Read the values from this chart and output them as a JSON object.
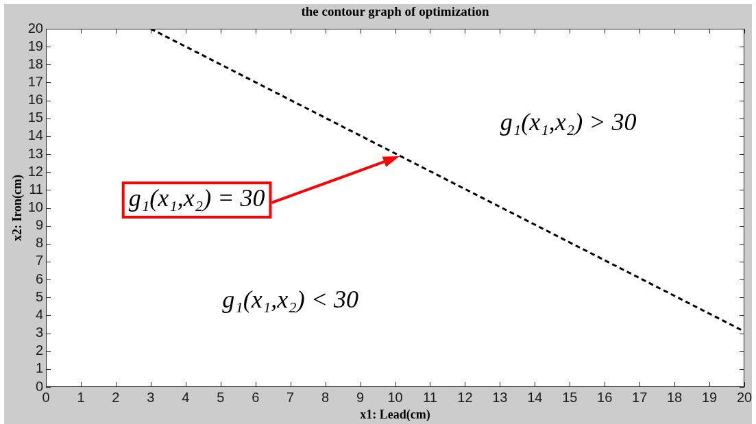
{
  "chart_data": {
    "type": "line",
    "title": "the contour graph of optimization",
    "xlabel": "x1: Lead(cm)",
    "ylabel": "x2: Iron(cm)",
    "x": [
      3,
      20
    ],
    "series": [
      {
        "color": "#000000",
        "values": [
          20,
          3.1
        ]
      }
    ],
    "xlim": [
      0,
      20
    ],
    "xticks": [
      0,
      1,
      2,
      3,
      4,
      5,
      6,
      7,
      8,
      9,
      10,
      11,
      12,
      13,
      14,
      15,
      16,
      17,
      18,
      19,
      20
    ],
    "ylim": [
      0,
      20
    ],
    "yticks": [
      0,
      1,
      2,
      3,
      4,
      5,
      6,
      7,
      8,
      9,
      10,
      11,
      12,
      13,
      14,
      15,
      16,
      17,
      18,
      19,
      20
    ],
    "marker": "none",
    "line_style": "dashed",
    "annotations": [
      "g₁(x₁,x₂) > 30",
      "g₁(x₁,x₂) = 30",
      "g₁(x₁,x₂) < 30"
    ]
  }
}
